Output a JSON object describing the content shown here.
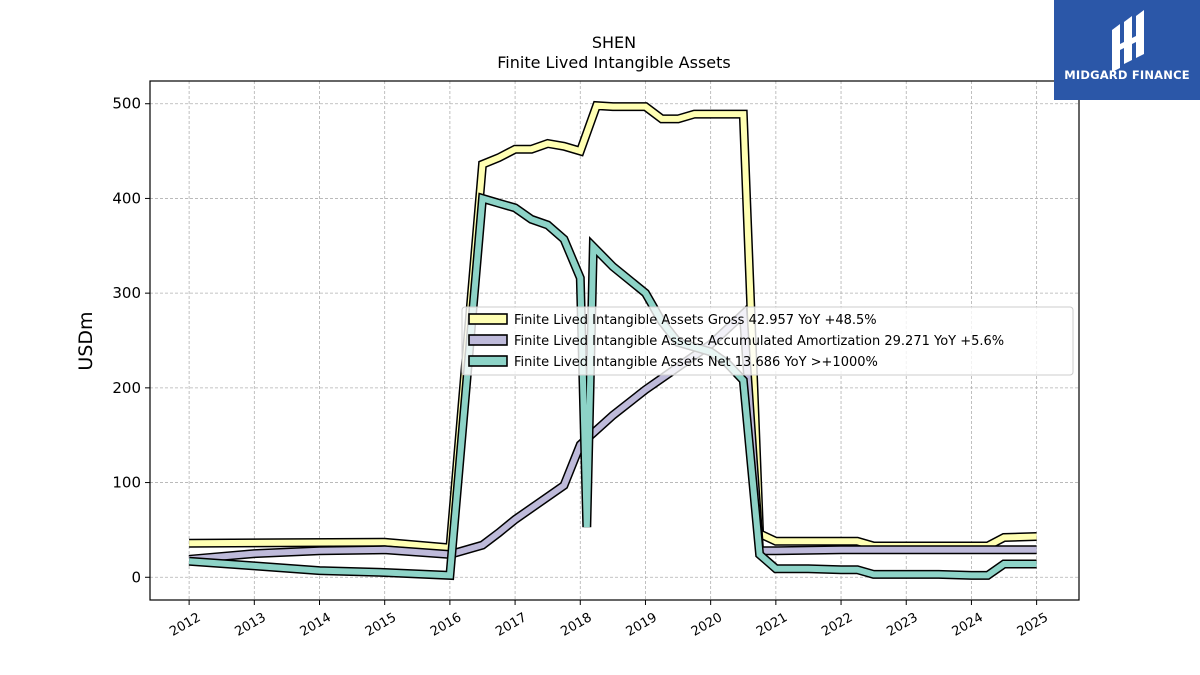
{
  "header": {
    "title": "SHEN",
    "subtitle": "Finite Lived Intangible Assets"
  },
  "logo": {
    "text": "MIDGARD FINANCE",
    "background": "#2b57a8"
  },
  "chart_data": {
    "type": "line",
    "title": "SHEN",
    "subtitle": "Finite Lived Intangible Assets",
    "xlabel": "",
    "ylabel": "USDm",
    "xlim": [
      2011.4,
      2025.65
    ],
    "ylim": [
      -24,
      524
    ],
    "x_ticks": [
      "2012",
      "2013",
      "2014",
      "2015",
      "2016",
      "2017",
      "2018",
      "2019",
      "2020",
      "2021",
      "2022",
      "2023",
      "2024",
      "2025"
    ],
    "y_ticks": [
      0,
      100,
      200,
      300,
      400,
      500
    ],
    "grid": true,
    "legend_position": "center-right",
    "series": [
      {
        "name": "Finite Lived Intangible Assets Gross",
        "legend_label": "Finite Lived Intangible Assets Gross  42.957 YoY +48.5%",
        "color": "#ffffb3",
        "x": [
          2012.0,
          2015.0,
          2016.0,
          2016.5,
          2016.75,
          2017.0,
          2017.25,
          2017.5,
          2017.75,
          2018.0,
          2018.25,
          2018.5,
          2018.75,
          2019.0,
          2019.25,
          2019.5,
          2019.75,
          2020.0,
          2020.25,
          2020.5,
          2020.75,
          2021.0,
          2021.5,
          2022.0,
          2022.25,
          2022.5,
          2023.0,
          2023.5,
          2024.0,
          2024.25,
          2024.5,
          2025.0
        ],
        "values": [
          36,
          37,
          31,
          436,
          443,
          452,
          452,
          458,
          455,
          450,
          498,
          497,
          497,
          497,
          484,
          484,
          489,
          489,
          489,
          489,
          46,
          38,
          38,
          38,
          38,
          33,
          33,
          33,
          33,
          33,
          42,
          43
        ]
      },
      {
        "name": "Finite Lived Intangible Assets Accumulated Amortization",
        "legend_label": "Finite Lived Intangible Assets Accumulated Amortization  29.271 YoY +5.6%",
        "color": "#bebada",
        "x": [
          2012.0,
          2013.0,
          2014.0,
          2015.0,
          2016.0,
          2016.5,
          2016.75,
          2017.0,
          2017.5,
          2017.75,
          2018.0,
          2018.5,
          2019.0,
          2019.5,
          2020.0,
          2020.5,
          2020.75,
          2021.0,
          2022.0,
          2022.5,
          2023.0,
          2024.0,
          2024.5,
          2025.0
        ],
        "values": [
          19,
          25,
          28,
          29,
          24,
          34,
          47,
          61,
          85,
          97,
          140,
          171,
          198,
          222,
          246,
          278,
          28,
          28,
          29,
          29,
          29,
          29,
          29,
          29
        ]
      },
      {
        "name": "Finite Lived Intangible Assets Net",
        "legend_label": "Finite Lived Intangible Assets Net  13.686 YoY >+1000%",
        "color": "#8dd3c7",
        "x": [
          2012.0,
          2013.0,
          2014.0,
          2015.0,
          2016.0,
          2016.5,
          2016.75,
          2017.0,
          2017.25,
          2017.5,
          2017.75,
          2018.0,
          2018.1,
          2018.2,
          2018.5,
          2019.0,
          2019.25,
          2019.5,
          2019.75,
          2020.0,
          2020.25,
          2020.5,
          2020.75,
          2021.0,
          2021.5,
          2022.0,
          2022.25,
          2022.5,
          2023.0,
          2023.5,
          2024.0,
          2024.25,
          2024.5,
          2025.0
        ],
        "values": [
          17,
          12,
          7,
          5,
          2,
          400,
          395,
          390,
          378,
          372,
          357,
          316,
          53,
          349,
          328,
          300,
          270,
          248,
          243,
          238,
          226,
          208,
          24,
          9,
          9,
          8,
          8,
          3,
          3,
          3,
          2,
          2,
          14,
          14
        ]
      }
    ]
  }
}
